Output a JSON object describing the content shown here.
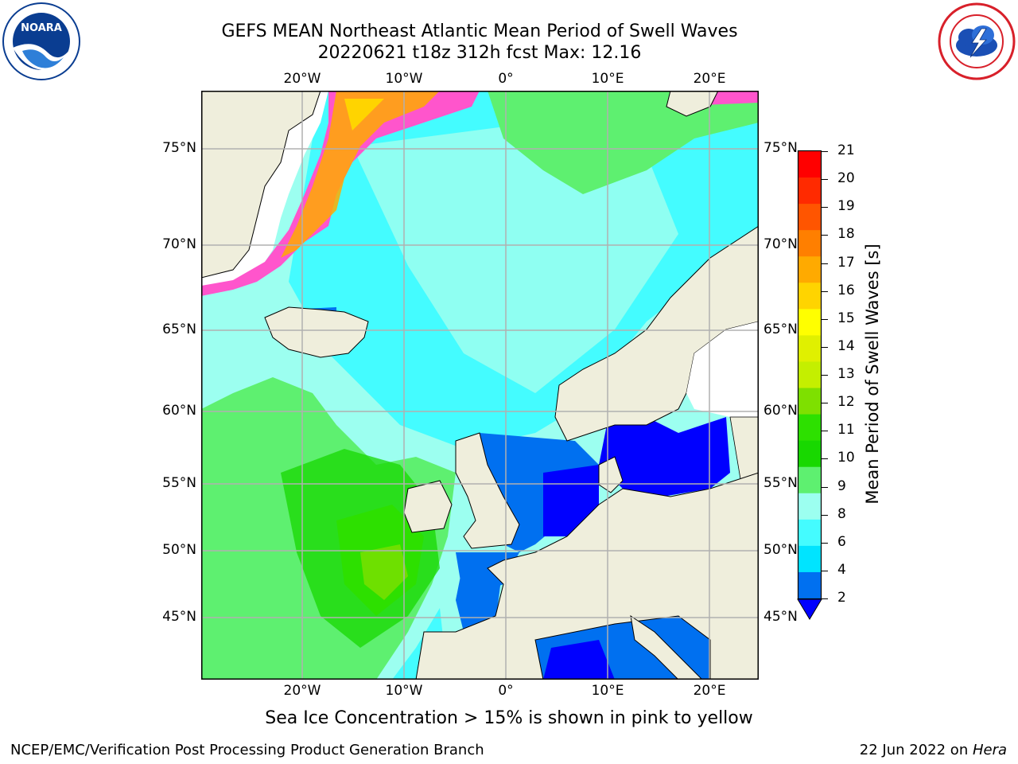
{
  "header": {
    "title_line1": "GEFS MEAN Northeast Atlantic Mean Period of Swell Waves",
    "title_line2": "20220621 t18z 312h fcst   Max: 12.16"
  },
  "logos": {
    "left": {
      "name": "NOARA",
      "ring_text": "NATIONAL OCEANIC AND ATMOSPHERIC ADMINISTRATION · U.S. DEPARTMENT OF COMMERCE",
      "color": "#0a3d91"
    },
    "right": {
      "ring_text": "NATIONAL WEATHER SERVICE",
      "color": "#d8202a"
    }
  },
  "map": {
    "lon_labels": [
      "20°W",
      "10°W",
      "0°",
      "10°E",
      "20°E"
    ],
    "lat_labels": [
      "75°N",
      "70°N",
      "65°N",
      "60°N",
      "55°N",
      "50°N",
      "45°N"
    ],
    "land_color": "#efeedc"
  },
  "colorbar": {
    "label": "Mean Period of Swell Waves [s]",
    "ticks": [
      "21",
      "20",
      "19",
      "18",
      "17",
      "16",
      "15",
      "14",
      "13",
      "12",
      "11",
      "10",
      "9",
      "8",
      "6",
      "4",
      "2"
    ],
    "colors": [
      "#ff0000",
      "#ff2a00",
      "#ff5500",
      "#ff7f00",
      "#ffaa00",
      "#ffd400",
      "#ffff00",
      "#e0f000",
      "#c4ef00",
      "#7ee000",
      "#2de000",
      "#18d800",
      "#5ef070",
      "#9cfff0",
      "#44fcff",
      "#00e4ff",
      "#0070f0"
    ],
    "underflow_color": "#0000ff"
  },
  "caption": "Sea Ice Concentration > 15% is shown in pink to yellow",
  "footer": {
    "left": "NCEP/EMC/Verification Post Processing Product Generation Branch",
    "right_prefix": "22 Jun 2022 on ",
    "right_host": "Hera"
  }
}
